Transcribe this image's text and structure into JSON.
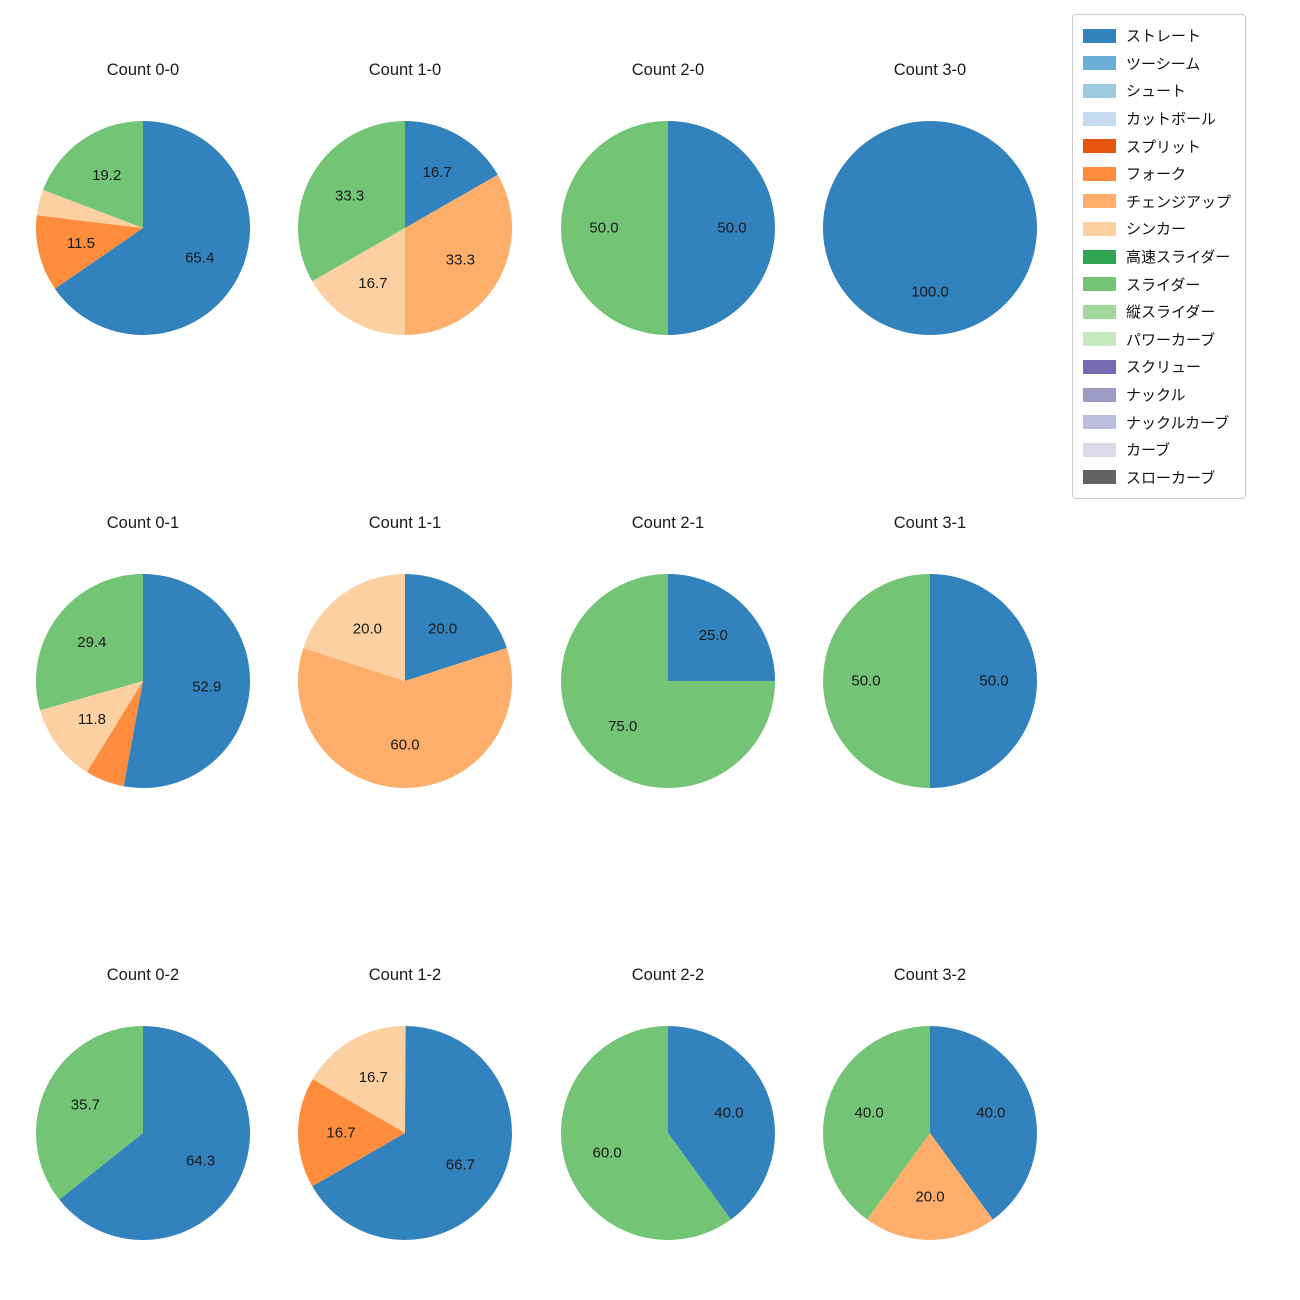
{
  "figure_background": "#ffffff",
  "legend": {
    "position": "upper-right",
    "items": [
      {
        "label": "ストレート",
        "color": "#3182bd"
      },
      {
        "label": "ツーシーム",
        "color": "#6baed6"
      },
      {
        "label": "シュート",
        "color": "#9ecae1"
      },
      {
        "label": "カットボール",
        "color": "#c6dbef"
      },
      {
        "label": "スプリット",
        "color": "#e6550d"
      },
      {
        "label": "フォーク",
        "color": "#fd8d3c"
      },
      {
        "label": "チェンジアップ",
        "color": "#fdae6b"
      },
      {
        "label": "シンカー",
        "color": "#fdd0a2"
      },
      {
        "label": "高速スライダー",
        "color": "#31a354"
      },
      {
        "label": "スライダー",
        "color": "#74c476"
      },
      {
        "label": "縦スライダー",
        "color": "#a1d99b"
      },
      {
        "label": "パワーカーブ",
        "color": "#c7e9c0"
      },
      {
        "label": "スクリュー",
        "color": "#756bb1"
      },
      {
        "label": "ナックル",
        "color": "#9e9ac8"
      },
      {
        "label": "ナックルカーブ",
        "color": "#bcbddc"
      },
      {
        "label": "カーブ",
        "color": "#dadaeb"
      },
      {
        "label": "スローカーブ",
        "color": "#636363"
      }
    ]
  },
  "chart_data": [
    {
      "type": "pie",
      "title": "Count 0-0",
      "start_angle": 90,
      "counterclock": false,
      "slices": [
        {
          "label": "ストレート",
          "value": 65.4,
          "pct_label": "65.4"
        },
        {
          "label": "フォーク",
          "value": 11.5,
          "pct_label": "11.5"
        },
        {
          "label": "シンカー",
          "value": 3.9,
          "pct_label": ""
        },
        {
          "label": "スライダー",
          "value": 19.2,
          "pct_label": "19.2"
        }
      ]
    },
    {
      "type": "pie",
      "title": "Count 1-0",
      "start_angle": 90,
      "counterclock": false,
      "slices": [
        {
          "label": "ストレート",
          "value": 16.7,
          "pct_label": "16.7"
        },
        {
          "label": "チェンジアップ",
          "value": 33.3,
          "pct_label": "33.3"
        },
        {
          "label": "シンカー",
          "value": 16.7,
          "pct_label": "16.7"
        },
        {
          "label": "スライダー",
          "value": 33.3,
          "pct_label": "33.3"
        }
      ]
    },
    {
      "type": "pie",
      "title": "Count 2-0",
      "start_angle": 90,
      "counterclock": false,
      "slices": [
        {
          "label": "ストレート",
          "value": 50.0,
          "pct_label": "50.0"
        },
        {
          "label": "スライダー",
          "value": 50.0,
          "pct_label": "50.0"
        }
      ]
    },
    {
      "type": "pie",
      "title": "Count 3-0",
      "start_angle": 90,
      "counterclock": false,
      "slices": [
        {
          "label": "ストレート",
          "value": 100.0,
          "pct_label": "100.0"
        }
      ]
    },
    {
      "type": "pie",
      "title": "Count 0-1",
      "start_angle": 90,
      "counterclock": false,
      "slices": [
        {
          "label": "ストレート",
          "value": 52.9,
          "pct_label": "52.9"
        },
        {
          "label": "フォーク",
          "value": 5.9,
          "pct_label": ""
        },
        {
          "label": "シンカー",
          "value": 11.8,
          "pct_label": "11.8"
        },
        {
          "label": "スライダー",
          "value": 29.4,
          "pct_label": "29.4"
        }
      ]
    },
    {
      "type": "pie",
      "title": "Count 1-1",
      "start_angle": 90,
      "counterclock": false,
      "slices": [
        {
          "label": "ストレート",
          "value": 20.0,
          "pct_label": "20.0"
        },
        {
          "label": "チェンジアップ",
          "value": 60.0,
          "pct_label": "60.0"
        },
        {
          "label": "シンカー",
          "value": 20.0,
          "pct_label": "20.0"
        }
      ]
    },
    {
      "type": "pie",
      "title": "Count 2-1",
      "start_angle": 90,
      "counterclock": false,
      "slices": [
        {
          "label": "ストレート",
          "value": 25.0,
          "pct_label": "25.0"
        },
        {
          "label": "スライダー",
          "value": 75.0,
          "pct_label": "75.0"
        }
      ]
    },
    {
      "type": "pie",
      "title": "Count 3-1",
      "start_angle": 90,
      "counterclock": false,
      "slices": [
        {
          "label": "ストレート",
          "value": 50.0,
          "pct_label": "50.0"
        },
        {
          "label": "スライダー",
          "value": 50.0,
          "pct_label": "50.0"
        }
      ]
    },
    {
      "type": "pie",
      "title": "Count 0-2",
      "start_angle": 90,
      "counterclock": false,
      "slices": [
        {
          "label": "ストレート",
          "value": 64.3,
          "pct_label": "64.3"
        },
        {
          "label": "スライダー",
          "value": 35.7,
          "pct_label": "35.7"
        }
      ]
    },
    {
      "type": "pie",
      "title": "Count 1-2",
      "start_angle": 90,
      "counterclock": false,
      "slices": [
        {
          "label": "ストレート",
          "value": 66.7,
          "pct_label": "66.7"
        },
        {
          "label": "フォーク",
          "value": 16.7,
          "pct_label": "16.7"
        },
        {
          "label": "シンカー",
          "value": 16.7,
          "pct_label": "16.7"
        }
      ]
    },
    {
      "type": "pie",
      "title": "Count 2-2",
      "start_angle": 90,
      "counterclock": false,
      "slices": [
        {
          "label": "ストレート",
          "value": 40.0,
          "pct_label": "40.0"
        },
        {
          "label": "スライダー",
          "value": 60.0,
          "pct_label": "60.0"
        }
      ]
    },
    {
      "type": "pie",
      "title": "Count 3-2",
      "start_angle": 90,
      "counterclock": false,
      "slices": [
        {
          "label": "ストレート",
          "value": 40.0,
          "pct_label": "40.0"
        },
        {
          "label": "チェンジアップ",
          "value": 20.0,
          "pct_label": "20.0"
        },
        {
          "label": "スライダー",
          "value": 40.0,
          "pct_label": "40.0"
        }
      ]
    }
  ]
}
